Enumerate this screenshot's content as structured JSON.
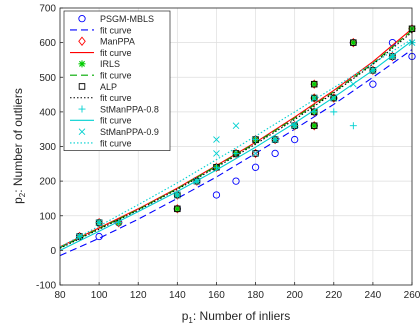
{
  "chart_data": {
    "type": "scatter",
    "xlabel_main": "p",
    "xlabel_sub": "1",
    "xlabel_rest": ": Number of inliers",
    "ylabel_main": "p",
    "ylabel_sub": "2",
    "ylabel_rest": ": Number of outliers",
    "xlim": [
      80,
      260
    ],
    "ylim": [
      -100,
      700
    ],
    "xticks": [
      80,
      100,
      120,
      140,
      160,
      180,
      200,
      220,
      240,
      260
    ],
    "yticks": [
      -100,
      0,
      100,
      200,
      300,
      400,
      500,
      600,
      700
    ],
    "grid": true,
    "legend_position": "top-left",
    "series": [
      {
        "name": "PSGM-MBLS",
        "kind": "points",
        "marker": "circle",
        "color": "#0000ff",
        "points": [
          [
            90,
            40
          ],
          [
            100,
            40
          ],
          [
            110,
            80
          ],
          [
            140,
            120
          ],
          [
            150,
            200
          ],
          [
            160,
            160
          ],
          [
            170,
            200
          ],
          [
            180,
            240
          ],
          [
            190,
            280
          ],
          [
            200,
            320
          ],
          [
            210,
            360
          ],
          [
            220,
            440
          ],
          [
            230,
            600
          ],
          [
            240,
            480
          ],
          [
            250,
            600
          ],
          [
            260,
            560
          ]
        ]
      },
      {
        "name": "fit curve",
        "kind": "line",
        "color": "#0000ff",
        "dash": "7,4",
        "points": [
          [
            80,
            -15
          ],
          [
            100,
            35
          ],
          [
            120,
            90
          ],
          [
            140,
            150
          ],
          [
            160,
            212
          ],
          [
            180,
            280
          ],
          [
            200,
            350
          ],
          [
            220,
            422
          ],
          [
            240,
            500
          ],
          [
            260,
            580
          ]
        ]
      },
      {
        "name": "ManPPA",
        "kind": "points",
        "marker": "diamond",
        "color": "#ff0000",
        "points": [
          [
            90,
            40
          ],
          [
            100,
            80
          ],
          [
            110,
            80
          ],
          [
            140,
            120
          ],
          [
            140,
            160
          ],
          [
            150,
            200
          ],
          [
            160,
            240
          ],
          [
            170,
            280
          ],
          [
            180,
            320
          ],
          [
            180,
            280
          ],
          [
            190,
            320
          ],
          [
            200,
            360
          ],
          [
            210,
            360
          ],
          [
            210,
            400
          ],
          [
            210,
            440
          ],
          [
            210,
            480
          ],
          [
            220,
            440
          ],
          [
            230,
            600
          ],
          [
            240,
            520
          ],
          [
            250,
            560
          ],
          [
            260,
            640
          ]
        ]
      },
      {
        "name": "fit curve",
        "kind": "line",
        "color": "#ff0000",
        "dash": "",
        "points": [
          [
            80,
            10
          ],
          [
            100,
            65
          ],
          [
            120,
            120
          ],
          [
            140,
            180
          ],
          [
            160,
            245
          ],
          [
            180,
            312
          ],
          [
            200,
            385
          ],
          [
            220,
            462
          ],
          [
            240,
            545
          ],
          [
            260,
            640
          ]
        ]
      },
      {
        "name": "IRLS",
        "kind": "points",
        "marker": "star",
        "color": "#00cc00",
        "points": [
          [
            90,
            40
          ],
          [
            100,
            80
          ],
          [
            110,
            80
          ],
          [
            140,
            120
          ],
          [
            140,
            160
          ],
          [
            150,
            200
          ],
          [
            160,
            240
          ],
          [
            170,
            280
          ],
          [
            180,
            320
          ],
          [
            190,
            320
          ],
          [
            200,
            360
          ],
          [
            210,
            360
          ],
          [
            210,
            400
          ],
          [
            210,
            440
          ],
          [
            210,
            480
          ],
          [
            220,
            440
          ],
          [
            230,
            600
          ],
          [
            240,
            520
          ],
          [
            250,
            560
          ],
          [
            260,
            640
          ]
        ]
      },
      {
        "name": "fit curve",
        "kind": "line",
        "color": "#00aa00",
        "dash": "7,4",
        "points": [
          [
            80,
            8
          ],
          [
            100,
            63
          ],
          [
            120,
            118
          ],
          [
            140,
            178
          ],
          [
            160,
            243
          ],
          [
            180,
            310
          ],
          [
            200,
            382
          ],
          [
            220,
            458
          ],
          [
            240,
            540
          ],
          [
            260,
            635
          ]
        ]
      },
      {
        "name": "ALP",
        "kind": "points",
        "marker": "square",
        "color": "#000000",
        "points": [
          [
            90,
            40
          ],
          [
            100,
            80
          ],
          [
            140,
            120
          ],
          [
            140,
            160
          ],
          [
            150,
            200
          ],
          [
            160,
            240
          ],
          [
            170,
            280
          ],
          [
            180,
            320
          ],
          [
            180,
            280
          ],
          [
            190,
            320
          ],
          [
            200,
            360
          ],
          [
            210,
            360
          ],
          [
            210,
            400
          ],
          [
            210,
            440
          ],
          [
            210,
            480
          ],
          [
            220,
            440
          ],
          [
            230,
            600
          ],
          [
            240,
            520
          ],
          [
            250,
            560
          ],
          [
            260,
            640
          ]
        ]
      },
      {
        "name": "fit curve",
        "kind": "line",
        "color": "#000000",
        "dash": "1.5,2",
        "points": [
          [
            80,
            6
          ],
          [
            100,
            61
          ],
          [
            120,
            116
          ],
          [
            140,
            176
          ],
          [
            160,
            240
          ],
          [
            180,
            307
          ],
          [
            200,
            378
          ],
          [
            220,
            455
          ],
          [
            240,
            537
          ],
          [
            260,
            630
          ]
        ]
      },
      {
        "name": "StManPPA-0.8",
        "kind": "points",
        "marker": "plus",
        "color": "#00d0d0",
        "points": [
          [
            90,
            40
          ],
          [
            100,
            80
          ],
          [
            110,
            80
          ],
          [
            140,
            160
          ],
          [
            150,
            200
          ],
          [
            160,
            240
          ],
          [
            170,
            280
          ],
          [
            180,
            320
          ],
          [
            190,
            320
          ],
          [
            200,
            360
          ],
          [
            210,
            400
          ],
          [
            220,
            400
          ],
          [
            230,
            360
          ],
          [
            240,
            520
          ],
          [
            250,
            560
          ],
          [
            260,
            600
          ]
        ]
      },
      {
        "name": "fit curve",
        "kind": "line",
        "color": "#00d0d0",
        "dash": "",
        "points": [
          [
            80,
            0
          ],
          [
            100,
            55
          ],
          [
            120,
            112
          ],
          [
            140,
            170
          ],
          [
            160,
            232
          ],
          [
            180,
            298
          ],
          [
            200,
            368
          ],
          [
            220,
            442
          ],
          [
            240,
            520
          ],
          [
            260,
            605
          ]
        ]
      },
      {
        "name": "StManPPA-0.9",
        "kind": "points",
        "marker": "x",
        "color": "#00d0d0",
        "points": [
          [
            90,
            40
          ],
          [
            100,
            80
          ],
          [
            140,
            160
          ],
          [
            150,
            200
          ],
          [
            160,
            320
          ],
          [
            160,
            280
          ],
          [
            170,
            360
          ],
          [
            180,
            280
          ],
          [
            190,
            320
          ],
          [
            200,
            360
          ],
          [
            210,
            440
          ],
          [
            220,
            440
          ],
          [
            230,
            480
          ],
          [
            240,
            520
          ],
          [
            250,
            560
          ],
          [
            260,
            600
          ]
        ]
      },
      {
        "name": "fit curve",
        "kind": "line",
        "color": "#00d0d0",
        "dash": "1.5,2",
        "points": [
          [
            80,
            10
          ],
          [
            100,
            70
          ],
          [
            120,
            132
          ],
          [
            140,
            195
          ],
          [
            160,
            262
          ],
          [
            180,
            330
          ],
          [
            200,
            400
          ],
          [
            220,
            470
          ],
          [
            240,
            540
          ],
          [
            260,
            610
          ]
        ]
      }
    ]
  }
}
